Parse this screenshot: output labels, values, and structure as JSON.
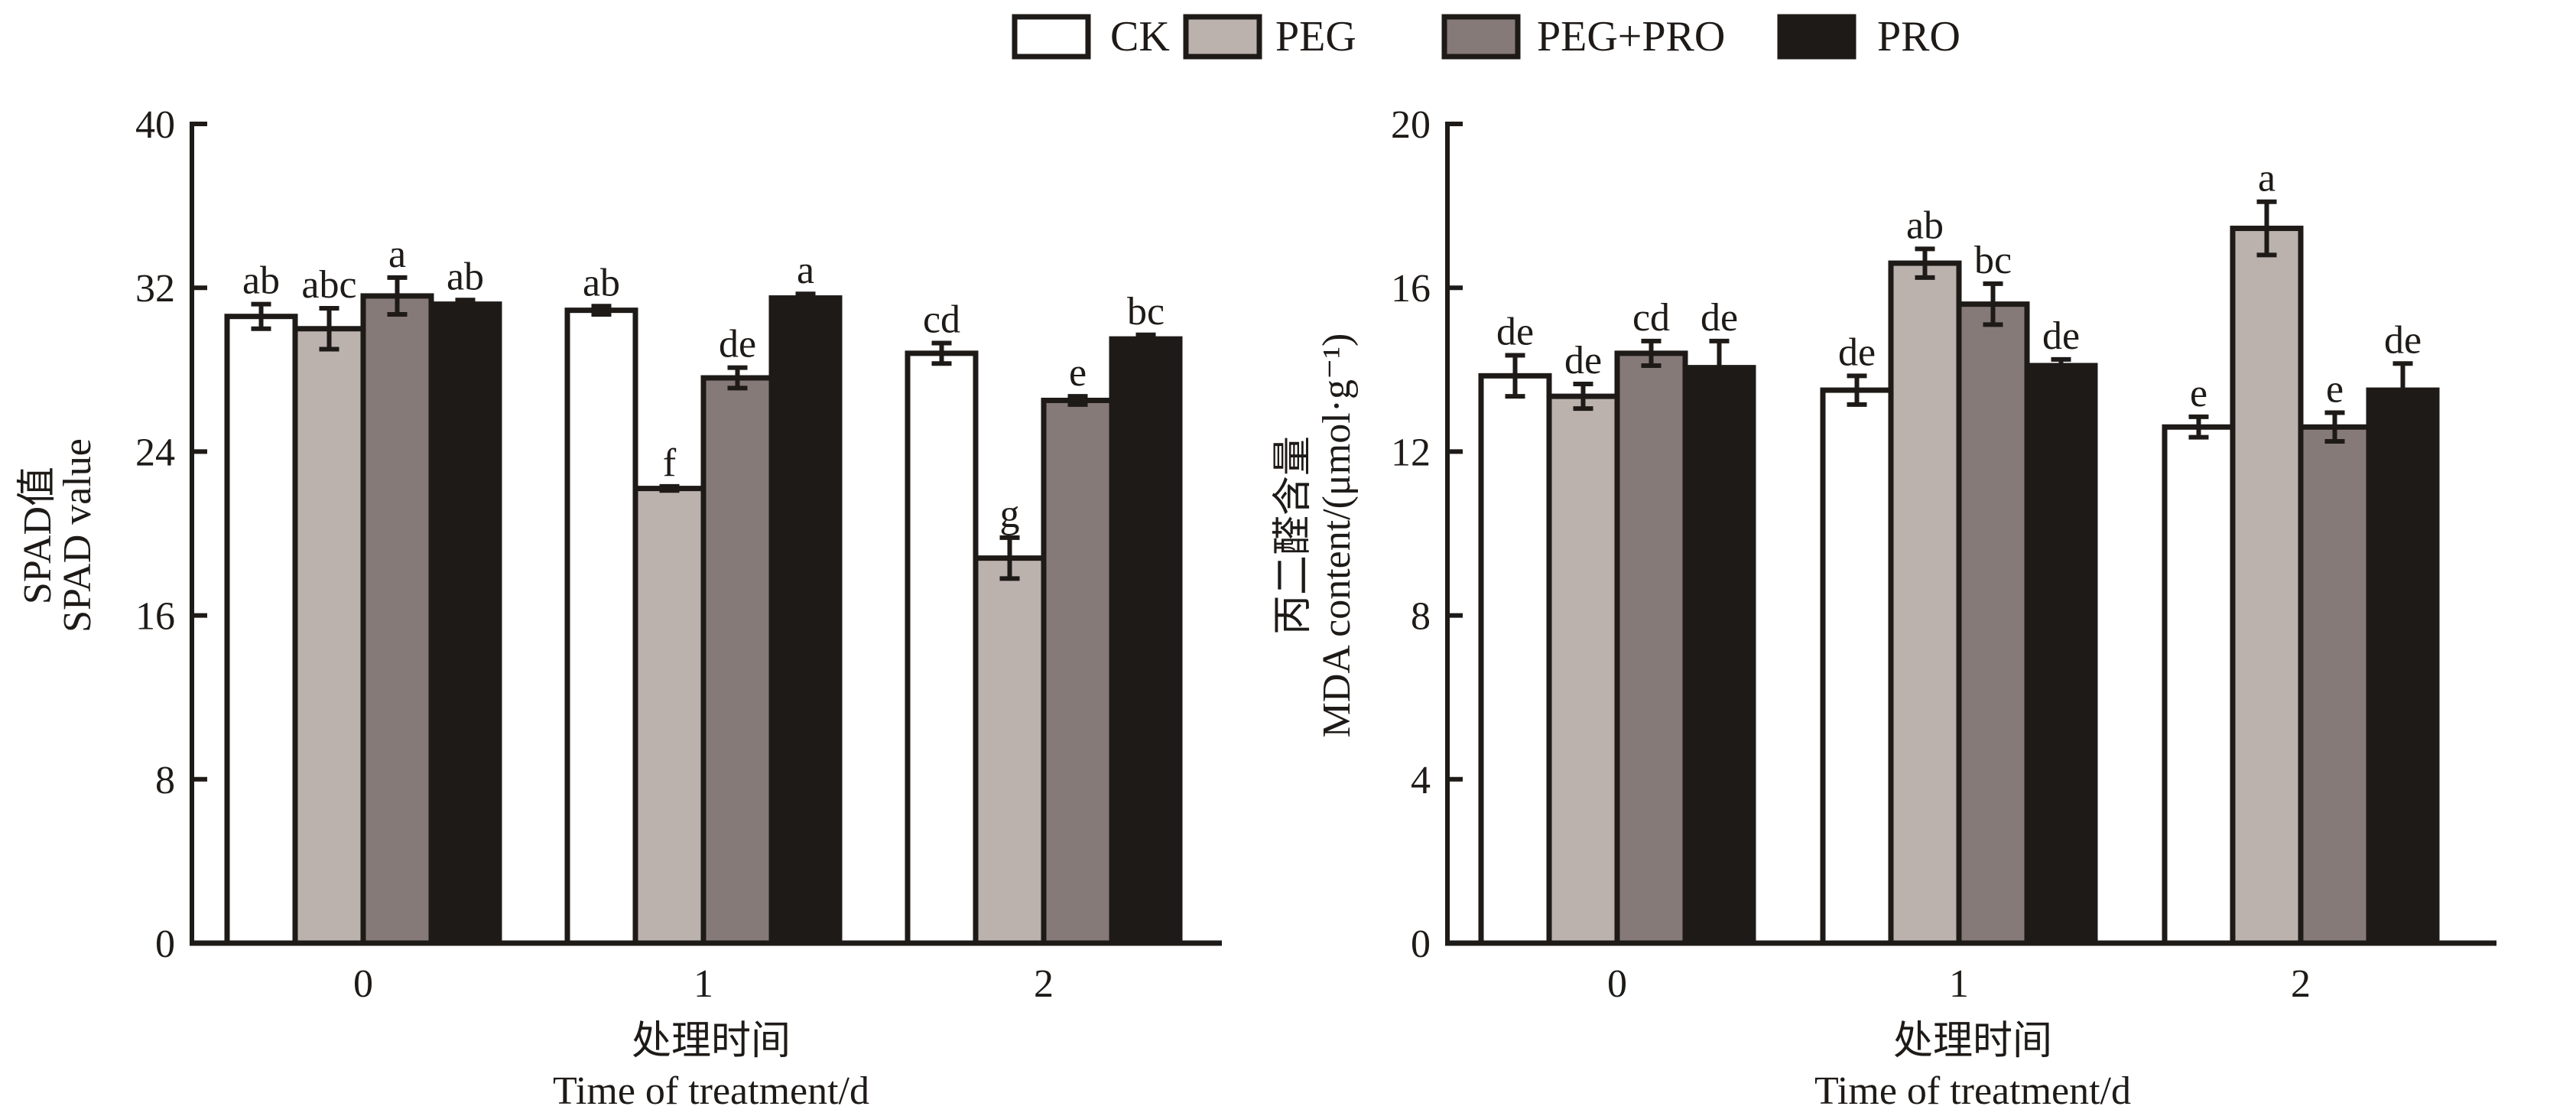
{
  "legend": {
    "items": [
      {
        "label": "CK",
        "color": "#ffffff"
      },
      {
        "label": "PEG",
        "color": "#bbb2ae"
      },
      {
        "label": "PEG+PRO",
        "color": "#857a77"
      },
      {
        "label": "PRO",
        "color": "#1e1a17"
      }
    ]
  },
  "chart_data": [
    {
      "type": "bar",
      "title": "",
      "ylabel_cn": "SPAD值",
      "ylabel_en": "SPAD value",
      "xlabel_cn": "处理时间",
      "xlabel_en": "Time of treatment/d",
      "categories": [
        "0",
        "1",
        "2"
      ],
      "ylim": [
        0,
        40
      ],
      "yticks": [
        0,
        8,
        16,
        24,
        32,
        40
      ],
      "grid": false,
      "legend_position": "top-center",
      "series": [
        {
          "name": "CK",
          "color": "#ffffff",
          "values": [
            30.6,
            30.9,
            28.8
          ],
          "errors": [
            0.6,
            0.2,
            0.5
          ],
          "sig": [
            "ab",
            "ab",
            "cd"
          ]
        },
        {
          "name": "PEG",
          "color": "#bbb2ae",
          "values": [
            30.0,
            22.2,
            18.8
          ],
          "errors": [
            1.0,
            0.1,
            1.0
          ],
          "sig": [
            "abc",
            "f",
            "g"
          ]
        },
        {
          "name": "PEG+PRO",
          "color": "#857a77",
          "values": [
            31.6,
            27.6,
            26.5
          ],
          "errors": [
            0.9,
            0.5,
            0.2
          ],
          "sig": [
            "a",
            "de",
            "e"
          ]
        },
        {
          "name": "PRO",
          "color": "#1e1a17",
          "values": [
            31.2,
            31.5,
            29.5
          ],
          "errors": [
            0.2,
            0.2,
            0.2
          ],
          "sig": [
            "ab",
            "a",
            "bc"
          ]
        }
      ]
    },
    {
      "type": "bar",
      "title": "",
      "ylabel_cn": "丙二醛含量",
      "ylabel_en": "MDA content/(μmol·g⁻¹)",
      "xlabel_cn": "处理时间",
      "xlabel_en": "Time of treatment/d",
      "categories": [
        "0",
        "1",
        "2"
      ],
      "ylim": [
        0,
        20
      ],
      "yticks": [
        0,
        4,
        8,
        12,
        16,
        20
      ],
      "grid": false,
      "legend_position": "top-center",
      "series": [
        {
          "name": "CK",
          "color": "#ffffff",
          "values": [
            13.85,
            13.5,
            12.6
          ],
          "errors": [
            0.5,
            0.35,
            0.25
          ],
          "sig": [
            "de",
            "de",
            "e"
          ]
        },
        {
          "name": "PEG",
          "color": "#bbb2ae",
          "values": [
            13.35,
            16.6,
            17.45
          ],
          "errors": [
            0.3,
            0.35,
            0.65
          ],
          "sig": [
            "de",
            "ab",
            "a"
          ]
        },
        {
          "name": "PEG+PRO",
          "color": "#857a77",
          "values": [
            14.4,
            15.6,
            12.6
          ],
          "errors": [
            0.3,
            0.5,
            0.35
          ],
          "sig": [
            "cd",
            "bc",
            "e"
          ]
        },
        {
          "name": "PRO",
          "color": "#1e1a17",
          "values": [
            14.05,
            14.1,
            13.5
          ],
          "errors": [
            0.65,
            0.15,
            0.65
          ],
          "sig": [
            "de",
            "de",
            "de"
          ]
        }
      ]
    }
  ]
}
